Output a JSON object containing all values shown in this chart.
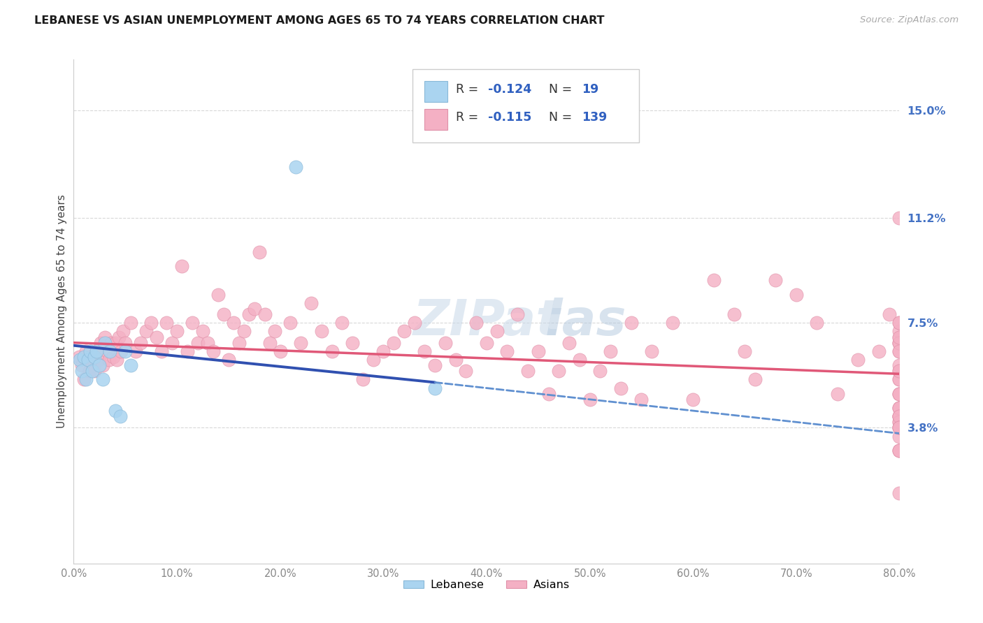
{
  "title": "LEBANESE VS ASIAN UNEMPLOYMENT AMONG AGES 65 TO 74 YEARS CORRELATION CHART",
  "source": "Source: ZipAtlas.com",
  "ylabel": "Unemployment Among Ages 65 to 74 years",
  "xlim": [
    0.0,
    0.8
  ],
  "ylim": [
    -0.01,
    0.168
  ],
  "yticks": [
    0.038,
    0.075,
    0.112,
    0.15
  ],
  "ytick_labels": [
    "3.8%",
    "7.5%",
    "11.2%",
    "15.0%"
  ],
  "xticks": [
    0.0,
    0.1,
    0.2,
    0.3,
    0.4,
    0.5,
    0.6,
    0.7,
    0.8
  ],
  "xtick_labels": [
    "0.0%",
    "10.0%",
    "20.0%",
    "30.0%",
    "40.0%",
    "50.0%",
    "60.0%",
    "70.0%",
    "80.0%"
  ],
  "lebanese_color": "#aad4f0",
  "lebanese_edge_color": "#88b8d8",
  "asian_color": "#f4b0c4",
  "asian_edge_color": "#e090a8",
  "lebanese_R": -0.124,
  "lebanese_N": 19,
  "asian_R": -0.115,
  "asian_N": 139,
  "blue_solid_color": "#3050b0",
  "pink_solid_color": "#e05878",
  "blue_dash_color": "#6090d0",
  "label_color": "#3060c0",
  "grid_color": "#d8d8d8",
  "tick_color_x": "#888888",
  "tick_color_y": "#4472C4",
  "title_color": "#1a1a1a",
  "source_color": "#aaaaaa",
  "watermark_color": "#c8d8e8",
  "leb_x": [
    0.006,
    0.008,
    0.01,
    0.012,
    0.014,
    0.016,
    0.018,
    0.02,
    0.022,
    0.025,
    0.028,
    0.03,
    0.035,
    0.04,
    0.045,
    0.05,
    0.055,
    0.215,
    0.35
  ],
  "leb_y": [
    0.062,
    0.058,
    0.063,
    0.055,
    0.062,
    0.065,
    0.058,
    0.063,
    0.065,
    0.06,
    0.055,
    0.068,
    0.065,
    0.044,
    0.042,
    0.065,
    0.06,
    0.13,
    0.052
  ],
  "asi_x": [
    0.005,
    0.008,
    0.01,
    0.012,
    0.015,
    0.016,
    0.018,
    0.02,
    0.022,
    0.024,
    0.026,
    0.028,
    0.03,
    0.032,
    0.034,
    0.036,
    0.038,
    0.04,
    0.042,
    0.044,
    0.046,
    0.048,
    0.05,
    0.055,
    0.06,
    0.065,
    0.07,
    0.075,
    0.08,
    0.085,
    0.09,
    0.095,
    0.1,
    0.105,
    0.11,
    0.115,
    0.12,
    0.125,
    0.13,
    0.135,
    0.14,
    0.145,
    0.15,
    0.155,
    0.16,
    0.165,
    0.17,
    0.175,
    0.18,
    0.185,
    0.19,
    0.195,
    0.2,
    0.21,
    0.22,
    0.23,
    0.24,
    0.25,
    0.26,
    0.27,
    0.28,
    0.29,
    0.3,
    0.31,
    0.32,
    0.33,
    0.34,
    0.35,
    0.36,
    0.37,
    0.38,
    0.39,
    0.4,
    0.41,
    0.42,
    0.43,
    0.44,
    0.45,
    0.46,
    0.47,
    0.48,
    0.49,
    0.5,
    0.51,
    0.52,
    0.53,
    0.54,
    0.55,
    0.56,
    0.58,
    0.6,
    0.62,
    0.64,
    0.65,
    0.66,
    0.68,
    0.7,
    0.72,
    0.74,
    0.76,
    0.78,
    0.79,
    0.8,
    0.8,
    0.8,
    0.8,
    0.8,
    0.8,
    0.8,
    0.8,
    0.8,
    0.8,
    0.8,
    0.8,
    0.8,
    0.8,
    0.8,
    0.8,
    0.8,
    0.8,
    0.8,
    0.8,
    0.8,
    0.8,
    0.8,
    0.8,
    0.8,
    0.8,
    0.8,
    0.8,
    0.8,
    0.8,
    0.8,
    0.8,
    0.8,
    0.8,
    0.8,
    0.8,
    0.8,
    0.8,
    0.8
  ],
  "asi_y": [
    0.063,
    0.06,
    0.055,
    0.065,
    0.058,
    0.063,
    0.06,
    0.058,
    0.065,
    0.062,
    0.068,
    0.06,
    0.07,
    0.065,
    0.062,
    0.068,
    0.063,
    0.068,
    0.062,
    0.07,
    0.065,
    0.072,
    0.068,
    0.075,
    0.065,
    0.068,
    0.072,
    0.075,
    0.07,
    0.065,
    0.075,
    0.068,
    0.072,
    0.095,
    0.065,
    0.075,
    0.068,
    0.072,
    0.068,
    0.065,
    0.085,
    0.078,
    0.062,
    0.075,
    0.068,
    0.072,
    0.078,
    0.08,
    0.1,
    0.078,
    0.068,
    0.072,
    0.065,
    0.075,
    0.068,
    0.082,
    0.072,
    0.065,
    0.075,
    0.068,
    0.055,
    0.062,
    0.065,
    0.068,
    0.072,
    0.075,
    0.065,
    0.06,
    0.068,
    0.062,
    0.058,
    0.075,
    0.068,
    0.072,
    0.065,
    0.078,
    0.058,
    0.065,
    0.05,
    0.058,
    0.068,
    0.062,
    0.048,
    0.058,
    0.065,
    0.052,
    0.075,
    0.048,
    0.065,
    0.075,
    0.048,
    0.09,
    0.078,
    0.065,
    0.055,
    0.09,
    0.085,
    0.075,
    0.05,
    0.062,
    0.065,
    0.078,
    0.042,
    0.065,
    0.045,
    0.068,
    0.07,
    0.072,
    0.045,
    0.058,
    0.042,
    0.075,
    0.068,
    0.042,
    0.055,
    0.04,
    0.112,
    0.03,
    0.038,
    0.038,
    0.045,
    0.05,
    0.04,
    0.075,
    0.068,
    0.03,
    0.055,
    0.06,
    0.065,
    0.042,
    0.05,
    0.07,
    0.035,
    0.058,
    0.038,
    0.03,
    0.015,
    0.05,
    0.038
  ]
}
